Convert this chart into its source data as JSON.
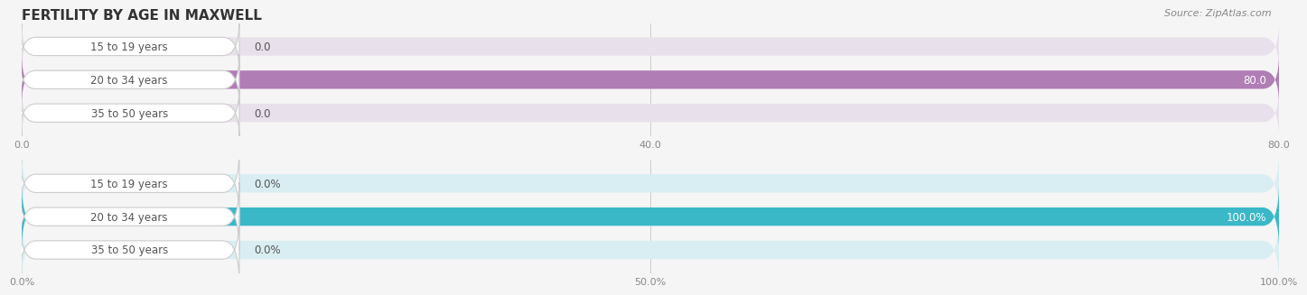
{
  "title": "FERTILITY BY AGE IN MAXWELL",
  "source": "Source: ZipAtlas.com",
  "top_chart": {
    "categories": [
      "15 to 19 years",
      "20 to 34 years",
      "35 to 50 years"
    ],
    "values": [
      0.0,
      80.0,
      0.0
    ],
    "xlim": [
      0,
      80.0
    ],
    "xticks": [
      0.0,
      40.0,
      80.0
    ],
    "xtick_labels": [
      "0.0",
      "40.0",
      "80.0"
    ],
    "bar_color": "#b07db5",
    "bar_bg_color": "#e8e0ea",
    "bar_height": 0.55
  },
  "bottom_chart": {
    "categories": [
      "15 to 19 years",
      "20 to 34 years",
      "35 to 50 years"
    ],
    "values": [
      0.0,
      100.0,
      0.0
    ],
    "xlim": [
      0,
      100.0
    ],
    "xticks": [
      0.0,
      50.0,
      100.0
    ],
    "xtick_labels": [
      "0.0%",
      "50.0%",
      "100.0%"
    ],
    "bar_color": "#3ab8c8",
    "bar_bg_color": "#d8eef2",
    "bar_height": 0.55
  },
  "background_color": "#f5f5f5",
  "label_box_color": "#ffffff",
  "label_text_color": "#555555",
  "value_label_color": "#555555",
  "highlight_value_color": "#ffffff",
  "title_fontsize": 11,
  "source_fontsize": 8,
  "tick_fontsize": 8,
  "label_fontsize": 8.5,
  "value_fontsize": 8.5
}
